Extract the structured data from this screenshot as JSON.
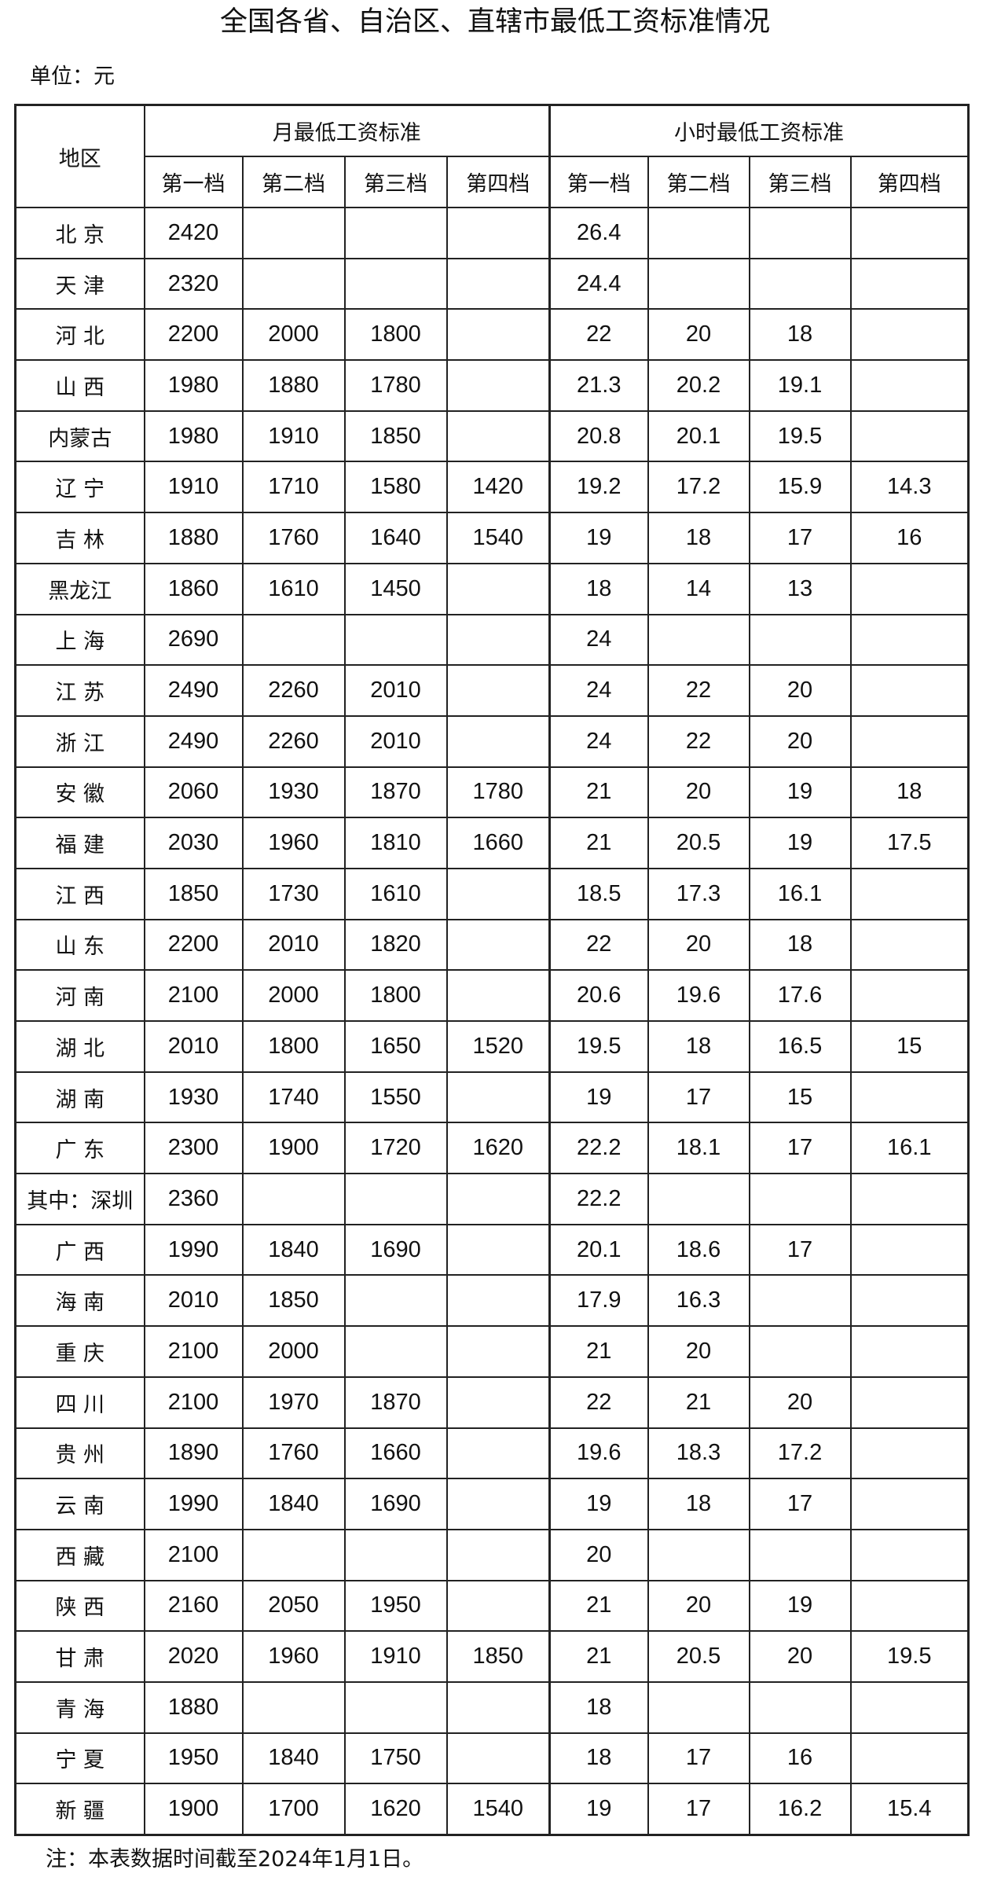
{
  "title": "全国各省、自治区、直辖市最低工资标准情况",
  "unit": "单位：元",
  "header": {
    "region": "地区",
    "monthly": "月最低工资标准",
    "hourly": "小时最低工资标准",
    "tiers": [
      "第一档",
      "第二档",
      "第三档",
      "第四档"
    ]
  },
  "rows": [
    {
      "region": "北 京",
      "monthly": [
        "2420",
        "",
        "",
        ""
      ],
      "hourly": [
        "26.4",
        "",
        "",
        ""
      ]
    },
    {
      "region": "天 津",
      "monthly": [
        "2320",
        "",
        "",
        ""
      ],
      "hourly": [
        "24.4",
        "",
        "",
        ""
      ]
    },
    {
      "region": "河 北",
      "monthly": [
        "2200",
        "2000",
        "1800",
        ""
      ],
      "hourly": [
        "22",
        "20",
        "18",
        ""
      ]
    },
    {
      "region": "山 西",
      "monthly": [
        "1980",
        "1880",
        "1780",
        ""
      ],
      "hourly": [
        "21.3",
        "20.2",
        "19.1",
        ""
      ]
    },
    {
      "region": "内蒙古",
      "monthly": [
        "1980",
        "1910",
        "1850",
        ""
      ],
      "hourly": [
        "20.8",
        "20.1",
        "19.5",
        ""
      ]
    },
    {
      "region": "辽 宁",
      "monthly": [
        "1910",
        "1710",
        "1580",
        "1420"
      ],
      "hourly": [
        "19.2",
        "17.2",
        "15.9",
        "14.3"
      ]
    },
    {
      "region": "吉 林",
      "monthly": [
        "1880",
        "1760",
        "1640",
        "1540"
      ],
      "hourly": [
        "19",
        "18",
        "17",
        "16"
      ]
    },
    {
      "region": "黑龙江",
      "monthly": [
        "1860",
        "1610",
        "1450",
        ""
      ],
      "hourly": [
        "18",
        "14",
        "13",
        ""
      ]
    },
    {
      "region": "上 海",
      "monthly": [
        "2690",
        "",
        "",
        ""
      ],
      "hourly": [
        "24",
        "",
        "",
        ""
      ]
    },
    {
      "region": "江 苏",
      "monthly": [
        "2490",
        "2260",
        "2010",
        ""
      ],
      "hourly": [
        "24",
        "22",
        "20",
        ""
      ]
    },
    {
      "region": "浙 江",
      "monthly": [
        "2490",
        "2260",
        "2010",
        ""
      ],
      "hourly": [
        "24",
        "22",
        "20",
        ""
      ]
    },
    {
      "region": "安 徽",
      "monthly": [
        "2060",
        "1930",
        "1870",
        "1780"
      ],
      "hourly": [
        "21",
        "20",
        "19",
        "18"
      ]
    },
    {
      "region": "福 建",
      "monthly": [
        "2030",
        "1960",
        "1810",
        "1660"
      ],
      "hourly": [
        "21",
        "20.5",
        "19",
        "17.5"
      ]
    },
    {
      "region": "江 西",
      "monthly": [
        "1850",
        "1730",
        "1610",
        ""
      ],
      "hourly": [
        "18.5",
        "17.3",
        "16.1",
        ""
      ]
    },
    {
      "region": "山 东",
      "monthly": [
        "2200",
        "2010",
        "1820",
        ""
      ],
      "hourly": [
        "22",
        "20",
        "18",
        ""
      ]
    },
    {
      "region": "河 南",
      "monthly": [
        "2100",
        "2000",
        "1800",
        ""
      ],
      "hourly": [
        "20.6",
        "19.6",
        "17.6",
        ""
      ]
    },
    {
      "region": "湖 北",
      "monthly": [
        "2010",
        "1800",
        "1650",
        "1520"
      ],
      "hourly": [
        "19.5",
        "18",
        "16.5",
        "15"
      ]
    },
    {
      "region": "湖 南",
      "monthly": [
        "1930",
        "1740",
        "1550",
        ""
      ],
      "hourly": [
        "19",
        "17",
        "15",
        ""
      ]
    },
    {
      "region": "广 东",
      "monthly": [
        "2300",
        "1900",
        "1720",
        "1620"
      ],
      "hourly": [
        "22.2",
        "18.1",
        "17",
        "16.1"
      ]
    },
    {
      "region": "其中：深圳",
      "monthly": [
        "2360",
        "",
        "",
        ""
      ],
      "hourly": [
        "22.2",
        "",
        "",
        ""
      ]
    },
    {
      "region": "广 西",
      "monthly": [
        "1990",
        "1840",
        "1690",
        ""
      ],
      "hourly": [
        "20.1",
        "18.6",
        "17",
        ""
      ]
    },
    {
      "region": "海 南",
      "monthly": [
        "2010",
        "1850",
        "",
        ""
      ],
      "hourly": [
        "17.9",
        "16.3",
        "",
        ""
      ]
    },
    {
      "region": "重 庆",
      "monthly": [
        "2100",
        "2000",
        "",
        ""
      ],
      "hourly": [
        "21",
        "20",
        "",
        ""
      ]
    },
    {
      "region": "四 川",
      "monthly": [
        "2100",
        "1970",
        "1870",
        ""
      ],
      "hourly": [
        "22",
        "21",
        "20",
        ""
      ]
    },
    {
      "region": "贵 州",
      "monthly": [
        "1890",
        "1760",
        "1660",
        ""
      ],
      "hourly": [
        "19.6",
        "18.3",
        "17.2",
        ""
      ]
    },
    {
      "region": "云 南",
      "monthly": [
        "1990",
        "1840",
        "1690",
        ""
      ],
      "hourly": [
        "19",
        "18",
        "17",
        ""
      ]
    },
    {
      "region": "西 藏",
      "monthly": [
        "2100",
        "",
        "",
        ""
      ],
      "hourly": [
        "20",
        "",
        "",
        ""
      ]
    },
    {
      "region": "陕 西",
      "monthly": [
        "2160",
        "2050",
        "1950",
        ""
      ],
      "hourly": [
        "21",
        "20",
        "19",
        ""
      ]
    },
    {
      "region": "甘 肃",
      "monthly": [
        "2020",
        "1960",
        "1910",
        "1850"
      ],
      "hourly": [
        "21",
        "20.5",
        "20",
        "19.5"
      ]
    },
    {
      "region": "青 海",
      "monthly": [
        "1880",
        "",
        "",
        ""
      ],
      "hourly": [
        "18",
        "",
        "",
        ""
      ]
    },
    {
      "region": "宁 夏",
      "monthly": [
        "1950",
        "1840",
        "1750",
        ""
      ],
      "hourly": [
        "18",
        "17",
        "16",
        ""
      ]
    },
    {
      "region": "新 疆",
      "monthly": [
        "1900",
        "1700",
        "1620",
        "1540"
      ],
      "hourly": [
        "19",
        "17",
        "16.2",
        "15.4"
      ]
    }
  ],
  "note": "注：本表数据时间截至2024年1月1日。"
}
